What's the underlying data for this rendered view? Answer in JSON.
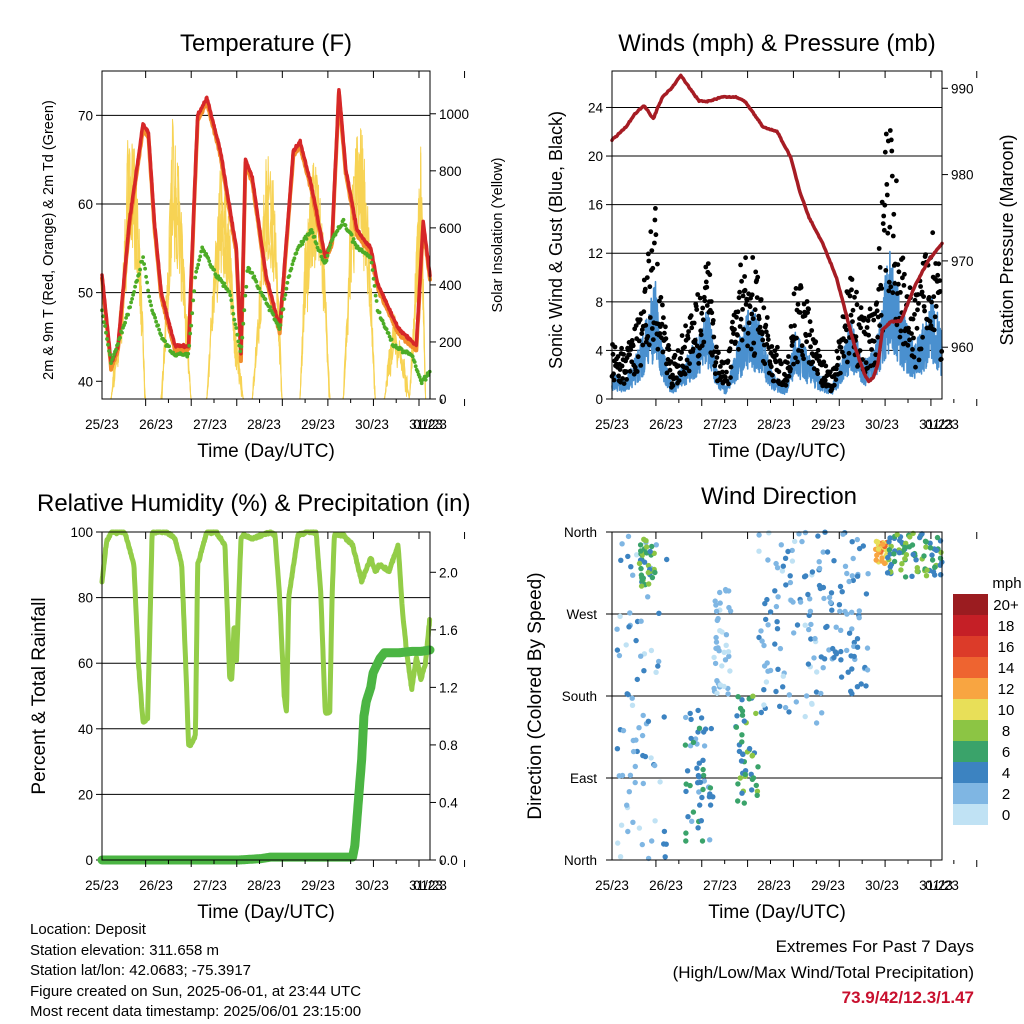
{
  "x_tick_labels": [
    "25/23",
    "26/23",
    "27/23",
    "28/23",
    "29/23",
    "30/23",
    "31/23",
    "01/23"
  ],
  "colors": {
    "temp_2m": "#d62728",
    "temp_9m": "#f28e2b",
    "dewpoint": "#4dac26",
    "solar": "#f7d354",
    "wind": "#4a90cf",
    "gust": "#000000",
    "pressure": "#a61c24",
    "rh": "#93cd48",
    "precip": "#4bb543"
  },
  "chart_data": [
    {
      "id": "temperature",
      "type": "line",
      "title": "Temperature (F)",
      "xlabel": "Time (Day/UTC)",
      "ylabel": "2m & 9m T (Red, Orange) & 2m Td (Green)",
      "ylabel_right": "Solar Insolation (Yellow)",
      "x_range_days": [
        0,
        7.2
      ],
      "ylim": [
        38,
        75
      ],
      "yticks": [
        40,
        50,
        60,
        70
      ],
      "ylim_right": [
        0,
        1150
      ],
      "yticks_right": [
        0,
        200,
        400,
        600,
        800,
        1000
      ],
      "series": [
        {
          "key": "t2m",
          "style": "line",
          "x": [
            0,
            0.2,
            0.35,
            0.6,
            0.9,
            1.02,
            1.15,
            1.3,
            1.6,
            1.9,
            2.02,
            2.1,
            2.3,
            2.6,
            2.95,
            3.05,
            3.15,
            3.3,
            3.6,
            3.9,
            4.05,
            4.2,
            4.35,
            4.6,
            4.9,
            5.05,
            5.2,
            5.35,
            5.6,
            5.9,
            6.05,
            6.5,
            6.9,
            7.05,
            7.2
          ],
          "y": [
            52,
            42,
            44,
            58,
            69,
            68,
            58,
            50,
            44,
            44,
            60,
            70,
            72,
            66,
            55,
            43,
            65,
            63,
            52,
            46,
            56,
            66,
            67,
            62,
            54,
            56,
            73,
            64,
            57,
            55,
            51,
            46,
            44,
            58,
            52
          ]
        },
        {
          "key": "dewpoint",
          "style": "dots",
          "x": [
            0,
            0.2,
            0.4,
            0.7,
            0.9,
            1.05,
            1.3,
            1.6,
            1.9,
            2.05,
            2.2,
            2.5,
            2.8,
            3.05,
            3.2,
            3.5,
            3.9,
            4.1,
            4.3,
            4.6,
            4.9,
            5.05,
            5.3,
            5.6,
            5.9,
            6.05,
            6.4,
            6.8,
            7.0,
            7.2
          ],
          "y": [
            48,
            42,
            45,
            50,
            54,
            49,
            45,
            43,
            43,
            52,
            55,
            52,
            50,
            43,
            53,
            50,
            46,
            52,
            55,
            57,
            53,
            56,
            58,
            55,
            54,
            48,
            44,
            43,
            40,
            41
          ]
        },
        {
          "key": "solar",
          "style": "line",
          "x": [
            0,
            0.1,
            0.2,
            0.45,
            0.6,
            0.75,
            0.8,
            0.95,
            1.1,
            1.3,
            1.45,
            1.55,
            1.7,
            1.8,
            1.95,
            2.1,
            2.3,
            2.45,
            2.6,
            2.8,
            2.9,
            3.1,
            3.3,
            3.45,
            3.6,
            3.8,
            3.95,
            4.15,
            4.35,
            4.45,
            4.65,
            4.85,
            5.0,
            5.15,
            5.3,
            5.45,
            5.65,
            5.85,
            6.0,
            6.1,
            6.2,
            6.4,
            6.6,
            6.75,
            6.85,
            7.0,
            7.1,
            7.2
          ],
          "y": [
            0,
            0,
            0,
            400,
            1050,
            800,
            700,
            0,
            0,
            0,
            500,
            980,
            800,
            500,
            0,
            0,
            0,
            450,
            820,
            650,
            300,
            0,
            0,
            380,
            880,
            700,
            0,
            0,
            0,
            520,
            880,
            600,
            0,
            0,
            0,
            650,
            1080,
            650,
            0,
            0,
            0,
            300,
            150,
            0,
            350,
            950,
            0,
            0
          ]
        }
      ]
    },
    {
      "id": "winds_pressure",
      "type": "scatter",
      "title": "Winds (mph) & Pressure (mb)",
      "xlabel": "Time (Day/UTC)",
      "ylabel": "Sonic Wind & Gust (Blue, Black)",
      "ylabel_right": "Station Pressure (Maroon)",
      "x_range_days": [
        0,
        7.2
      ],
      "ylim": [
        0,
        27
      ],
      "yticks": [
        0,
        4,
        8,
        12,
        16,
        20,
        24
      ],
      "ylim_right": [
        954,
        992
      ],
      "yticks_right": [
        960,
        970,
        980,
        990
      ],
      "series": [
        {
          "key": "wind_envelope",
          "x": [
            0,
            0.3,
            0.6,
            0.8,
            0.95,
            1.05,
            1.3,
            1.6,
            1.9,
            2.1,
            2.3,
            2.5,
            2.8,
            3.0,
            3.2,
            3.5,
            3.8,
            4.0,
            4.2,
            4.5,
            4.8,
            5.0,
            5.2,
            5.5,
            5.75,
            5.95,
            6.1,
            6.3,
            6.6,
            6.8,
            7.0,
            7.2
          ],
          "y": [
            2,
            1.5,
            4,
            7,
            9,
            5,
            1,
            3,
            5,
            7,
            2,
            1,
            5,
            7,
            6,
            2,
            1,
            5,
            4,
            2,
            1,
            3,
            6,
            3,
            4,
            9,
            12,
            7,
            4,
            6,
            8,
            5
          ]
        },
        {
          "key": "gust_envelope",
          "x": [
            0,
            0.3,
            0.6,
            0.8,
            0.95,
            1.05,
            1.3,
            1.6,
            1.9,
            2.1,
            2.3,
            2.5,
            2.8,
            3.0,
            3.2,
            3.5,
            3.8,
            4.0,
            4.2,
            4.5,
            4.8,
            5.0,
            5.2,
            5.5,
            5.75,
            5.95,
            6.1,
            6.3,
            6.6,
            6.8,
            7.0,
            7.2
          ],
          "y": [
            5,
            4,
            7,
            14,
            17,
            9,
            3,
            6,
            9,
            12,
            4,
            3,
            11,
            13,
            10,
            5,
            3,
            10,
            9,
            4,
            2,
            6,
            11,
            7,
            8,
            21,
            25,
            13,
            8,
            12,
            14,
            10
          ]
        },
        {
          "key": "pressure",
          "x": [
            0,
            0.3,
            0.5,
            0.7,
            0.9,
            1.1,
            1.3,
            1.5,
            1.7,
            1.9,
            2.1,
            2.4,
            2.7,
            2.9,
            3.1,
            3.3,
            3.6,
            3.9,
            4.1,
            4.3,
            4.6,
            4.9,
            5.1,
            5.3,
            5.5,
            5.6,
            5.7,
            5.8,
            5.9,
            6.1,
            6.3,
            6.6,
            6.9,
            7.2
          ],
          "y": [
            984,
            985.5,
            987,
            988,
            986.5,
            989,
            990,
            991.5,
            990,
            988.5,
            988.5,
            989,
            989,
            988.5,
            987,
            985.5,
            985,
            982,
            978,
            975,
            972,
            968,
            964,
            960,
            957,
            956,
            956.5,
            958,
            962,
            963,
            963,
            967,
            970,
            972
          ]
        }
      ]
    },
    {
      "id": "rh_precip",
      "type": "line",
      "title": "Relative Humidity (%) & Precipitation (in)",
      "xlabel": "Time (Day/UTC)",
      "ylabel": "Percent & Total Rainfall",
      "x_range_days": [
        0,
        7.2
      ],
      "ylim": [
        0,
        100
      ],
      "yticks": [
        0,
        20,
        40,
        60,
        80,
        100
      ],
      "ylim_right": [
        0,
        2.28
      ],
      "yticks_right": [
        0.0,
        0.4,
        0.8,
        1.2,
        1.6,
        2.0
      ],
      "series": [
        {
          "key": "rh",
          "x": [
            0,
            0.1,
            0.2,
            0.4,
            0.5,
            0.7,
            0.8,
            0.9,
            1.0,
            1.05,
            1.1,
            1.2,
            1.4,
            1.6,
            1.75,
            1.85,
            1.9,
            1.95,
            2.05,
            2.1,
            2.3,
            2.5,
            2.7,
            2.8,
            2.85,
            2.9,
            2.95,
            3.05,
            3.1,
            3.3,
            3.5,
            3.7,
            3.8,
            3.9,
            4.0,
            4.05,
            4.1,
            4.3,
            4.5,
            4.7,
            4.8,
            4.9,
            5.0,
            5.05,
            5.1,
            5.3,
            5.5,
            5.7,
            5.9,
            6.0,
            6.1,
            6.3,
            6.5,
            6.6,
            6.7,
            6.8,
            6.9,
            7.0,
            7.1,
            7.2
          ],
          "y": [
            85,
            97,
            100,
            100,
            100,
            90,
            60,
            42,
            43,
            70,
            100,
            100,
            100,
            98,
            90,
            55,
            35,
            35,
            38,
            90,
            100,
            100,
            96,
            56,
            55,
            72,
            60,
            98,
            99,
            98,
            99,
            100,
            99,
            80,
            50,
            45,
            80,
            99,
            100,
            100,
            82,
            45,
            45,
            80,
            99,
            99,
            96,
            85,
            92,
            88,
            90,
            88,
            96,
            75,
            62,
            52,
            62,
            55,
            60,
            74
          ]
        },
        {
          "key": "precip",
          "x": [
            0,
            1,
            2,
            3,
            3.5,
            3.7,
            4.0,
            4.5,
            5.0,
            5.3,
            5.5,
            5.55,
            5.6,
            5.7,
            5.75,
            5.8,
            5.9,
            5.95,
            6.1,
            6.2,
            6.5,
            6.8,
            7.0,
            7.2
          ],
          "y": [
            0,
            0,
            0,
            0,
            0.01,
            0.02,
            0.02,
            0.02,
            0.02,
            0.02,
            0.02,
            0.1,
            0.3,
            0.7,
            1.0,
            1.1,
            1.2,
            1.3,
            1.4,
            1.44,
            1.44,
            1.45,
            1.45,
            1.46
          ]
        }
      ]
    },
    {
      "id": "wind_direction",
      "type": "scatter",
      "title": "Wind Direction",
      "xlabel": "Time (Day/UTC)",
      "ylabel": "Direction (Colored By Speed)",
      "x_range_days": [
        0,
        7.2
      ],
      "y_categories": [
        "North",
        "East",
        "South",
        "West",
        "North"
      ],
      "colorbar": {
        "unit": "mph",
        "labels": [
          "20+",
          "18",
          "16",
          "14",
          "12",
          "10",
          "8",
          "6",
          "4",
          "2",
          "0"
        ],
        "colors": [
          "#9b1c20",
          "#c51f26",
          "#dc3b29",
          "#ee6430",
          "#f8a541",
          "#e8df58",
          "#8cc544",
          "#3aa36a",
          "#3c83c1",
          "#7fb6e3",
          "#c0e2f4"
        ]
      },
      "clusters": [
        {
          "t": [
            0.1,
            1.2
          ],
          "dir": [
            0,
            360
          ],
          "speed": [
            0,
            4
          ]
        },
        {
          "t": [
            0.6,
            0.95
          ],
          "dir": [
            300,
            355
          ],
          "speed": [
            4,
            9
          ]
        },
        {
          "t": [
            1.6,
            2.2
          ],
          "dir": [
            20,
            170
          ],
          "speed": [
            2,
            6
          ]
        },
        {
          "t": [
            2.2,
            2.6
          ],
          "dir": [
            180,
            300
          ],
          "speed": [
            0,
            3
          ]
        },
        {
          "t": [
            2.7,
            3.2
          ],
          "dir": [
            60,
            180
          ],
          "speed": [
            3,
            8
          ]
        },
        {
          "t": [
            3.2,
            4.6
          ],
          "dir": [
            150,
            360
          ],
          "speed": [
            0,
            5
          ]
        },
        {
          "t": [
            4.6,
            5.6
          ],
          "dir": [
            180,
            360
          ],
          "speed": [
            1,
            5
          ]
        },
        {
          "t": [
            5.75,
            6.0
          ],
          "dir": [
            325,
            350
          ],
          "speed": [
            9,
            14
          ]
        },
        {
          "t": [
            6.0,
            7.2
          ],
          "dir": [
            310,
            360
          ],
          "speed": [
            3,
            9
          ]
        }
      ]
    }
  ],
  "info": {
    "location": "Location: Deposit",
    "elevation": "Station elevation: 311.658 m",
    "latlon": "Station lat/lon: 42.0683; -75.3917",
    "created": "Figure created on Sun, 2025-06-01, at 23:44 UTC",
    "recent": "Most recent data timestamp: 2025/06/01 23:15:00"
  },
  "extremes": {
    "line1": "Extremes For Past 7 Days",
    "line2": "(High/Low/Max Wind/Total Precipitation)",
    "values": "73.9/42/12.3/1.47"
  }
}
